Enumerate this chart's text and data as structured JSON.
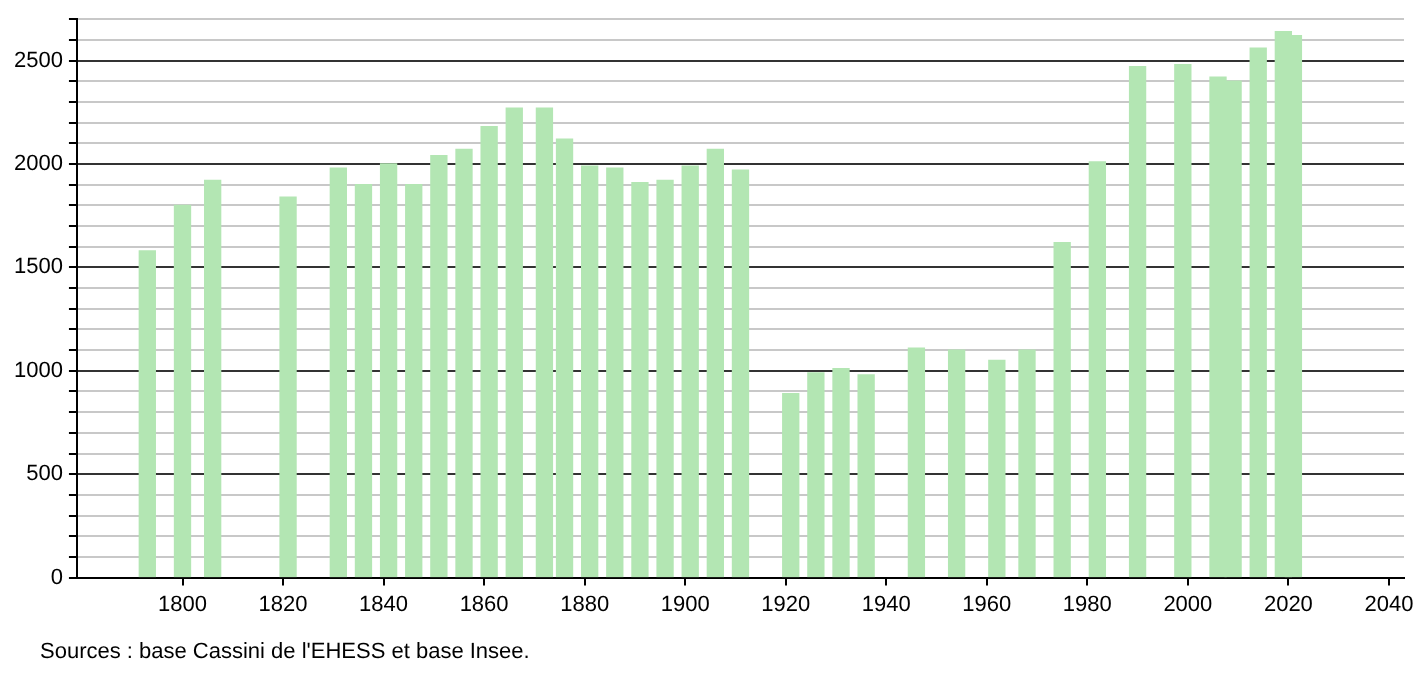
{
  "chart_data": {
    "type": "bar",
    "x": [
      1793,
      1800,
      1806,
      1821,
      1831,
      1836,
      1841,
      1846,
      1851,
      1856,
      1861,
      1866,
      1872,
      1876,
      1881,
      1886,
      1891,
      1896,
      1901,
      1906,
      1911,
      1921,
      1926,
      1931,
      1936,
      1946,
      1954,
      1962,
      1968,
      1975,
      1982,
      1990,
      1999,
      2006,
      2009,
      2014,
      2019,
      2021
    ],
    "values": [
      1580,
      1800,
      1920,
      1840,
      1980,
      1900,
      2000,
      1900,
      2040,
      2070,
      2180,
      2270,
      2270,
      2120,
      1990,
      1980,
      1910,
      1920,
      1990,
      2070,
      1970,
      890,
      990,
      1010,
      980,
      1110,
      1100,
      1050,
      1100,
      1620,
      2010,
      2470,
      2480,
      2420,
      2400,
      2560,
      2640,
      2620
    ],
    "color": "#b3e6b3",
    "xlim": [
      1779,
      2043
    ],
    "xticks": [
      1800,
      1820,
      1840,
      1860,
      1880,
      1900,
      1920,
      1940,
      1960,
      1980,
      2000,
      2020,
      2040
    ],
    "ylim": [
      0,
      2700
    ],
    "yticks": [
      0,
      {
        "value": 100,
        "label": null
      },
      {
        "value": 200,
        "label": null
      },
      {
        "value": 300,
        "label": null
      },
      {
        "value": 400,
        "label": null
      },
      500,
      {
        "value": 600,
        "label": null
      },
      {
        "value": 700,
        "label": null
      },
      {
        "value": 800,
        "label": null
      },
      {
        "value": 900,
        "label": null
      },
      1000,
      {
        "value": 1100,
        "label": null
      },
      {
        "value": 1200,
        "label": null
      },
      {
        "value": 1300,
        "label": null
      },
      {
        "value": 1400,
        "label": null
      },
      1500,
      {
        "value": 1600,
        "label": null
      },
      {
        "value": 1700,
        "label": null
      },
      {
        "value": 1800,
        "label": null
      },
      {
        "value": 1900,
        "label": null
      },
      2000,
      {
        "value": 2100,
        "label": null
      },
      {
        "value": 2200,
        "label": null
      },
      {
        "value": 2300,
        "label": null
      },
      {
        "value": 2400,
        "label": null
      },
      2500,
      {
        "value": 2600,
        "label": null
      },
      {
        "value": 2700,
        "label": null
      }
    ],
    "grid": "y",
    "annotations": [
      "Sources : base Cassini de l'EHESS et base Insee."
    ]
  }
}
